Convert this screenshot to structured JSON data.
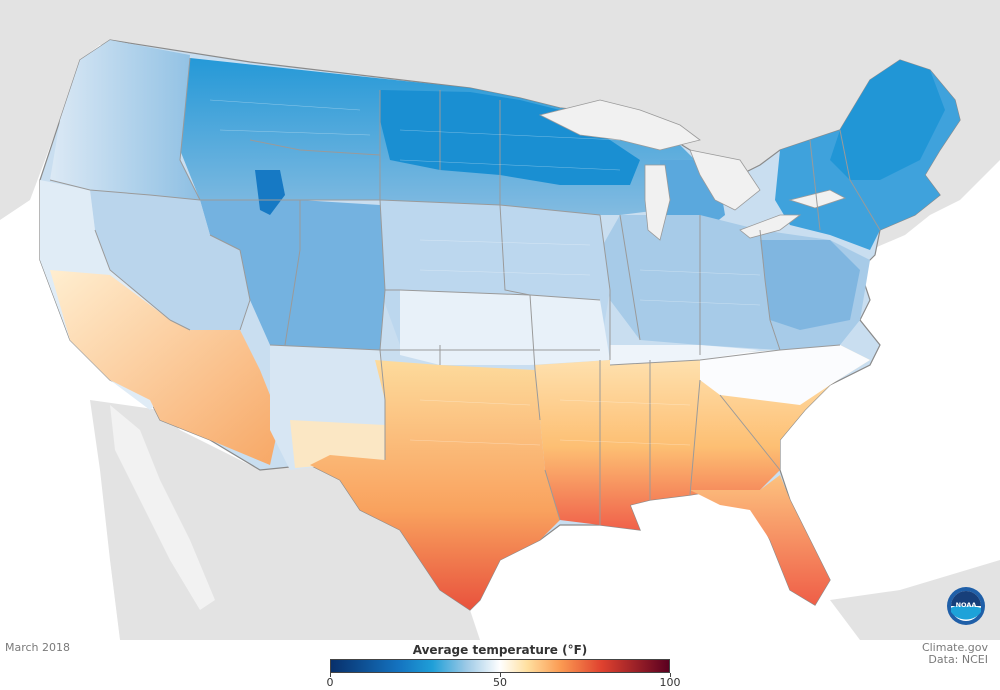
{
  "caption": {
    "date": "March 2018",
    "credit_line1": "Climate.gov",
    "credit_line2": "Data: NCEI"
  },
  "legend": {
    "title": "Average temperature (°F)",
    "min": 0,
    "max": 100,
    "ticks": [
      {
        "value": 0,
        "label": "0"
      },
      {
        "value": 50,
        "label": "50"
      },
      {
        "value": 100,
        "label": "100"
      }
    ],
    "color_stops": [
      {
        "value": 0,
        "color": "#08306b"
      },
      {
        "value": 20,
        "color": "#1473c0"
      },
      {
        "value": 30,
        "color": "#1f9fd8"
      },
      {
        "value": 40,
        "color": "#9cc9e6"
      },
      {
        "value": 50,
        "color": "#ffffff"
      },
      {
        "value": 58,
        "color": "#ffe0a0"
      },
      {
        "value": 68,
        "color": "#fb9a52"
      },
      {
        "value": 80,
        "color": "#e0422f"
      },
      {
        "value": 100,
        "color": "#5a0020"
      }
    ]
  },
  "colors": {
    "ocean": "#ffffff",
    "land_outside": "#e3e3e3",
    "state_border": "#9a9a9a",
    "national_border": "#8a8a8a"
  },
  "logo": {
    "text": "NOAA",
    "color": "#1f5fa8"
  }
}
